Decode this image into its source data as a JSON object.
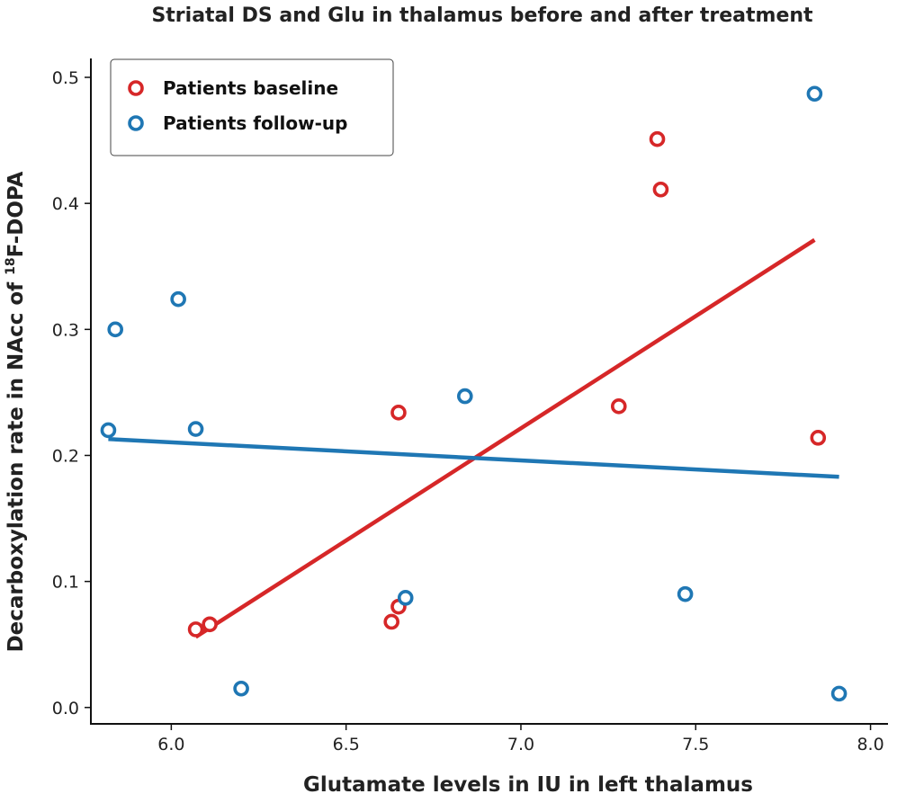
{
  "chart_data": {
    "type": "scatter",
    "title": "Striatal DS and Glu in thalamus before and after treatment",
    "xlabel": "Glutamate levels in IU in left thalamus",
    "ylabel_prefix": "Decarboxylation rate in NAcc of ",
    "ylabel_superscript": "18",
    "ylabel_suffix": "F-DOPA",
    "xlim": [
      5.77,
      8.05
    ],
    "ylim": [
      -0.013,
      0.515
    ],
    "x_ticks": [
      6.0,
      6.5,
      7.0,
      7.5,
      8.0
    ],
    "x_tick_labels": [
      "6.0",
      "6.5",
      "7.0",
      "7.5",
      "8.0"
    ],
    "y_ticks": [
      0.0,
      0.1,
      0.2,
      0.3,
      0.4,
      0.5
    ],
    "y_tick_labels": [
      "0.0",
      "0.1",
      "0.2",
      "0.3",
      "0.4",
      "0.5"
    ],
    "legend_position": "top-left",
    "series": [
      {
        "name": "Patients baseline",
        "color": "#d62728",
        "points": [
          {
            "x": 6.07,
            "y": 0.062
          },
          {
            "x": 6.11,
            "y": 0.066
          },
          {
            "x": 6.63,
            "y": 0.068
          },
          {
            "x": 6.65,
            "y": 0.08
          },
          {
            "x": 6.65,
            "y": 0.234
          },
          {
            "x": 7.28,
            "y": 0.239
          },
          {
            "x": 7.39,
            "y": 0.451
          },
          {
            "x": 7.4,
            "y": 0.411
          },
          {
            "x": 7.85,
            "y": 0.214
          }
        ],
        "fit_line": [
          {
            "x": 6.07,
            "y": 0.056
          },
          {
            "x": 7.84,
            "y": 0.371
          }
        ]
      },
      {
        "name": "Patients follow-up",
        "color": "#1f77b4",
        "points": [
          {
            "x": 5.82,
            "y": 0.22
          },
          {
            "x": 5.84,
            "y": 0.3
          },
          {
            "x": 6.02,
            "y": 0.324
          },
          {
            "x": 6.07,
            "y": 0.221
          },
          {
            "x": 6.2,
            "y": 0.015
          },
          {
            "x": 6.67,
            "y": 0.087
          },
          {
            "x": 6.84,
            "y": 0.247
          },
          {
            "x": 7.47,
            "y": 0.09
          },
          {
            "x": 7.84,
            "y": 0.487
          },
          {
            "x": 7.91,
            "y": 0.011
          }
        ],
        "fit_line": [
          {
            "x": 5.82,
            "y": 0.213
          },
          {
            "x": 7.91,
            "y": 0.183
          }
        ]
      }
    ]
  }
}
